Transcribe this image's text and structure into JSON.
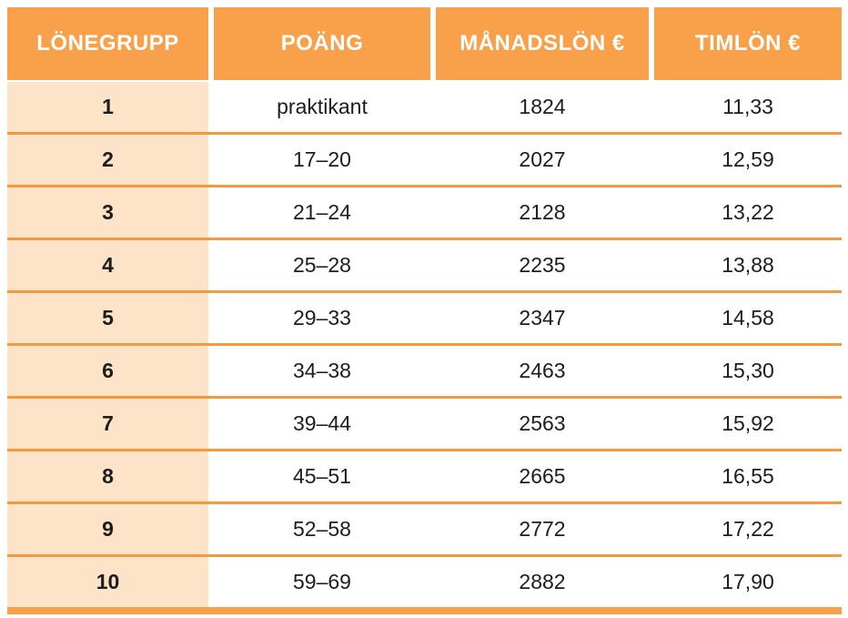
{
  "table": {
    "columns": [
      "LÖNEGRUPP",
      "POÄNG",
      "MÅNADSLÖN €",
      "TIMLÖN €"
    ],
    "column_keys": [
      "lonegrupp",
      "poang",
      "manadslon",
      "timlon"
    ],
    "rows": [
      [
        "1",
        "praktikant",
        "1824",
        "11,33"
      ],
      [
        "2",
        "17–20",
        "2027",
        "12,59"
      ],
      [
        "3",
        "21–24",
        "2128",
        "13,22"
      ],
      [
        "4",
        "25–28",
        "2235",
        "13,88"
      ],
      [
        "5",
        "29–33",
        "2347",
        "14,58"
      ],
      [
        "6",
        "34–38",
        "2463",
        "15,30"
      ],
      [
        "7",
        "39–44",
        "2563",
        "15,92"
      ],
      [
        "8",
        "45–51",
        "2665",
        "16,55"
      ],
      [
        "9",
        "52–58",
        "2772",
        "17,22"
      ],
      [
        "10",
        "59–69",
        "2882",
        "17,90"
      ]
    ]
  },
  "colors": {
    "accent_orange": "#F9A04A",
    "divider_orange": "#F5993D",
    "first_column_peach": "#FDE4C8",
    "header_text": "#FFFFFF",
    "body_text": "#1D1D1B"
  }
}
